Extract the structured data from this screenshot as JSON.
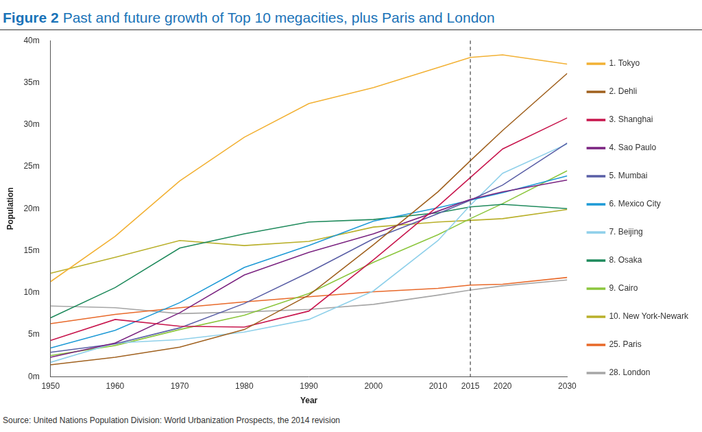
{
  "chart_data": {
    "type": "line",
    "figure_label": "Figure 2",
    "title": "Past and future growth of Top 10 megacities, plus Paris and London",
    "source": "Source: United Nations Population Division: World Urbanization Prospects, the 2014 revision",
    "x_label": "Year",
    "y_label": "Population",
    "x": [
      1950,
      1960,
      1970,
      1980,
      1990,
      2000,
      2010,
      2015,
      2020,
      2030
    ],
    "xlim": [
      1950,
      2030
    ],
    "xticks": [
      1950,
      1960,
      1970,
      1980,
      1990,
      2000,
      2010,
      2015,
      2020,
      2030
    ],
    "ylim": [
      0,
      40
    ],
    "yticks": [
      {
        "value": 0,
        "label": "0m"
      },
      {
        "value": 5,
        "label": "5m"
      },
      {
        "value": 10,
        "label": "10m"
      },
      {
        "value": 15,
        "label": "15m"
      },
      {
        "value": 20,
        "label": "20m"
      },
      {
        "value": 25,
        "label": "25m"
      },
      {
        "value": 30,
        "label": "30m"
      },
      {
        "value": 35,
        "label": "35m"
      },
      {
        "value": 40,
        "label": "40m"
      }
    ],
    "grid": false,
    "legend": "right",
    "marker": "none",
    "line_style": "solid",
    "divider_x": 2015,
    "series": [
      {
        "name": "1. Tokyo",
        "color": "#f2b134",
        "values": [
          11.3,
          16.7,
          23.3,
          28.5,
          32.5,
          34.4,
          36.8,
          38.0,
          38.3,
          37.2
        ]
      },
      {
        "name": "2. Dehli",
        "color": "#a0611f",
        "values": [
          1.4,
          2.3,
          3.5,
          5.6,
          9.7,
          15.7,
          22.0,
          25.7,
          29.3,
          36.1
        ]
      },
      {
        "name": "3. Shanghai",
        "color": "#c8174e",
        "values": [
          4.3,
          6.8,
          6.0,
          5.9,
          7.8,
          13.9,
          20.3,
          23.7,
          27.1,
          30.8
        ]
      },
      {
        "name": "4. Sao Paulo",
        "color": "#7b2481",
        "values": [
          2.3,
          4.0,
          7.6,
          12.1,
          14.8,
          17.0,
          19.7,
          21.1,
          22.0,
          23.4
        ]
      },
      {
        "name": "5. Mumbai",
        "color": "#5a5fa6",
        "values": [
          2.9,
          3.9,
          5.8,
          8.7,
          12.4,
          16.4,
          19.4,
          21.0,
          22.8,
          27.8
        ]
      },
      {
        "name": "6. Mexico City",
        "color": "#1e9ad6",
        "values": [
          3.4,
          5.5,
          8.8,
          13.0,
          15.6,
          18.5,
          20.1,
          21.0,
          21.9,
          23.9
        ]
      },
      {
        "name": "7. Beijing",
        "color": "#8fd0ea",
        "values": [
          1.7,
          4.0,
          4.4,
          5.3,
          6.8,
          10.2,
          16.2,
          20.4,
          24.2,
          27.7
        ]
      },
      {
        "name": "8. Osaka",
        "color": "#1f8a5c",
        "values": [
          7.0,
          10.6,
          15.3,
          17.0,
          18.4,
          18.7,
          19.5,
          20.2,
          20.5,
          20.0
        ]
      },
      {
        "name": "9. Cairo",
        "color": "#8cc63e",
        "values": [
          2.5,
          3.7,
          5.6,
          7.3,
          9.9,
          13.6,
          16.9,
          18.8,
          20.6,
          24.5
        ]
      },
      {
        "name": "10. New York-Newark",
        "color": "#b9b02b",
        "values": [
          12.3,
          14.2,
          16.2,
          15.6,
          16.1,
          17.8,
          18.4,
          18.6,
          18.8,
          19.9
        ]
      },
      {
        "name": "25. Paris",
        "color": "#e8692a",
        "values": [
          6.3,
          7.4,
          8.2,
          8.9,
          9.5,
          10.1,
          10.5,
          10.9,
          11.0,
          11.8
        ]
      },
      {
        "name": "28. London",
        "color": "#a6a6a6",
        "values": [
          8.4,
          8.2,
          7.5,
          7.7,
          8.0,
          8.6,
          9.7,
          10.3,
          10.8,
          11.5
        ]
      }
    ]
  }
}
